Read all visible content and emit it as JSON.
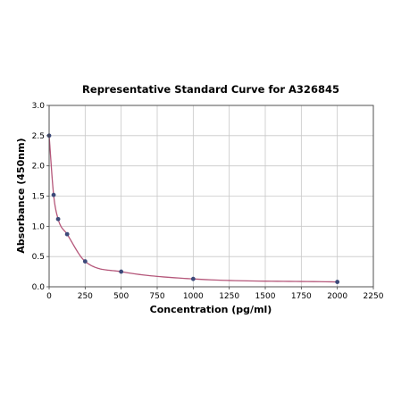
{
  "chart_data": {
    "type": "scatter",
    "title": "Representative Standard Curve for A326845",
    "xlabel": "Concentration (pg/ml)",
    "ylabel": "Absorbance (450nm)",
    "xlim": [
      0,
      2250
    ],
    "ylim": [
      0,
      3.0
    ],
    "x_ticks": [
      "0",
      "250",
      "500",
      "750",
      "1000",
      "1250",
      "1500",
      "1750",
      "2000",
      "2250"
    ],
    "y_ticks": [
      "0.0",
      "0.5",
      "1.0",
      "1.5",
      "2.0",
      "2.5",
      "3.0"
    ],
    "grid": true,
    "series": [
      {
        "points": [
          {
            "x": 0,
            "y": 2.5
          },
          {
            "x": 31.25,
            "y": 1.52
          },
          {
            "x": 62.5,
            "y": 1.12
          },
          {
            "x": 125,
            "y": 0.87
          },
          {
            "x": 250,
            "y": 0.42
          },
          {
            "x": 500,
            "y": 0.25
          },
          {
            "x": 1000,
            "y": 0.13
          },
          {
            "x": 2000,
            "y": 0.08
          }
        ]
      }
    ],
    "colors": {
      "curve": "#b5577a",
      "points": "#3d4a7a"
    }
  }
}
